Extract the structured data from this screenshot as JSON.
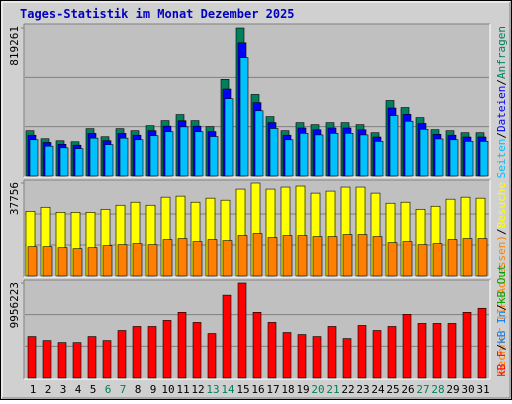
{
  "chart_data": [
    {
      "type": "bar",
      "title": "Tages-Statistik im Monat Dezember 2025",
      "ylim": [
        0,
        819261
      ],
      "yticks": [
        819261
      ],
      "gridlines": [
        273087,
        546174
      ],
      "legend_separator": "/",
      "series": [
        {
          "name": "Anfragen",
          "color": "#00805c",
          "values": [
            250785,
            206201,
            195055,
            189482,
            261931,
            217347,
            261931,
            250785,
            278650,
            306515,
            339953,
            306515,
            273077,
            535008,
            819261,
            451413,
            328807,
            250785,
            295369,
            284223,
            295369,
            295369,
            284223,
            239639,
            417975,
            378964,
            323234,
            256358,
            250785,
            239639,
            239639
          ]
        },
        {
          "name": "Dateien",
          "color": "#0000ff",
          "values": [
            225700,
            185600,
            175500,
            170500,
            235700,
            195600,
            235700,
            225700,
            250800,
            275900,
            306000,
            275900,
            245800,
            481500,
            737300,
            406300,
            295900,
            225700,
            265800,
            255800,
            265800,
            265800,
            255800,
            215700,
            376200,
            341100,
            290900,
            230700,
            225700,
            215700,
            215700
          ]
        },
        {
          "name": "Seiten",
          "color": "#00c0ff",
          "values": [
            200600,
            165000,
            156000,
            151600,
            209500,
            173900,
            209500,
            200600,
            222900,
            245200,
            272000,
            245200,
            218500,
            428000,
            655400,
            361100,
            263000,
            200600,
            236300,
            227400,
            236300,
            236300,
            227400,
            191700,
            334400,
            303200,
            258600,
            205100,
            200600,
            191700,
            191700
          ]
        }
      ]
    },
    {
      "type": "bar",
      "ylim": [
        0,
        37756
      ],
      "yticks": [
        37756
      ],
      "gridlines": [
        12585,
        25171
      ],
      "series": [
        {
          "name": "Besuche",
          "color": "#ffff00",
          "values": [
            26266,
            27907,
            25855,
            25855,
            25855,
            27086,
            28728,
            29959,
            28728,
            32011,
            32422,
            29959,
            31600,
            30780,
            35294,
            37756,
            35294,
            36115,
            36526,
            33653,
            34474,
            36115,
            36115,
            33653,
            29549,
            29959,
            27086,
            28318,
            31190,
            32011,
            31600
          ]
        },
        {
          "name": "Rechner (IP-Adressen)",
          "color": "#ff8000",
          "values": [
            11900,
            11900,
            11490,
            11080,
            11490,
            12310,
            12720,
            13130,
            12720,
            14770,
            15180,
            13950,
            14770,
            14360,
            16410,
            17230,
            15590,
            16410,
            16410,
            16000,
            16000,
            16820,
            16820,
            16000,
            13540,
            13950,
            12720,
            13130,
            14770,
            15180,
            15180
          ]
        }
      ]
    },
    {
      "type": "bar",
      "ylim": [
        0,
        9956223
      ],
      "yticks": [
        9956223
      ],
      "gridlines": [
        3318741,
        6637482
      ],
      "categories": [
        "1",
        "2",
        "3",
        "4",
        "5",
        "6",
        "7",
        "8",
        "9",
        "10",
        "11",
        "12",
        "13",
        "14",
        "15",
        "16",
        "17",
        "18",
        "19",
        "20",
        "21",
        "22",
        "23",
        "24",
        "25",
        "26",
        "27",
        "28",
        "29",
        "30",
        "31"
      ],
      "label_colors": [
        "#000000",
        "#000000",
        "#000000",
        "#000000",
        "#000000",
        "#00805c",
        "#00805c",
        "#000000",
        "#000000",
        "#000000",
        "#000000",
        "#000000",
        "#00805c",
        "#00805c",
        "#000000",
        "#000000",
        "#000000",
        "#000000",
        "#000000",
        "#00805c",
        "#00805c",
        "#000000",
        "#000000",
        "#000000",
        "#000000",
        "#000000",
        "#00805c",
        "#00805c",
        "#000000",
        "#000000",
        "#000000"
      ],
      "series": [
        {
          "name": "kB F",
          "color": "#ff0000",
          "values": [
            4342600,
            3918900,
            3707100,
            3707100,
            4342600,
            3918900,
            4978100,
            5401800,
            5401800,
            6037300,
            6884600,
            5825400,
            4660300,
            8685200,
            9956223,
            6884600,
            5825400,
            4766300,
            4554400,
            4342600,
            5401800,
            4130800,
            5507700,
            4978100,
            5401800,
            6672800,
            5719500,
            5719500,
            5719500,
            6884600,
            7308300
          ]
        }
      ],
      "legend_extra": [
        {
          "name": "kB In",
          "color": "#0080ff"
        },
        {
          "name": "kB Out",
          "color": "#00a000"
        }
      ]
    }
  ]
}
